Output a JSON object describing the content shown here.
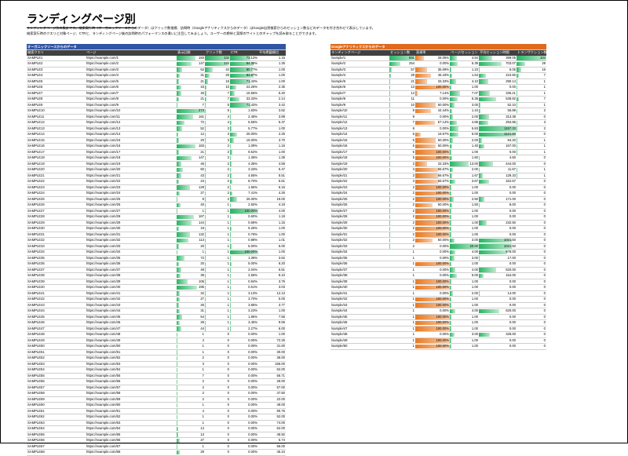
{
  "title": "ランディングページ別",
  "description": [
    "ランディングページ別の集計です。検索実行時（オーガニックソースからのデータ）はクリック数指標、訪問時（Googleアナリティクスからのデータ）はGoogle自然検索からのセッション数などのデータを付き合わせて表示しています。",
    "検索実行時のクエリと対象ページ、CTRと、ランディングページ後の訪問時のパフォーマンスの違いに注目してみましょう。ユーザーの期待と実際のサイトとのギャップを読み取ることができます。"
  ],
  "left_table": {
    "section_title": "オーガニックソースからのデータ",
    "headers": [
      "検索クエリ",
      "ページ",
      "表示回数",
      "クリック数",
      "CTR",
      "平均掲載順位"
    ],
    "rows": [
      [
        "SAMPLE1",
        "https://example.com/1",
        "183",
        "132",
        "72.13%",
        "1.15"
      ],
      [
        "SAMPLE2",
        "https://example.com/2",
        "147",
        "124",
        "84.35%",
        "1.35"
      ],
      [
        "SAMPLE3",
        "https://example.com/3",
        "52",
        "42",
        "80.77%",
        "1.00"
      ],
      [
        "SAMPLE4",
        "https://example.com/4",
        "31",
        "26",
        "83.87%",
        "1.00"
      ],
      [
        "SAMPLE5",
        "https://example.com/5",
        "21",
        "15",
        "71.43%",
        "1.00"
      ],
      [
        "SAMPLE6",
        "https://example.com/6",
        "43",
        "10",
        "23.26%",
        "2.35"
      ],
      [
        "SAMPLE7",
        "https://example.com/7",
        "45",
        "7",
        "15.56%",
        "5.40"
      ],
      [
        "SAMPLE8",
        "https://example.com/8",
        "21",
        "7",
        "33.33%",
        "2.14"
      ],
      [
        "SAMPLE9",
        "https://example.com/9",
        "7",
        "5",
        "71.43%",
        "3.42"
      ],
      [
        "SAMPLE10",
        "https://example.com/10",
        "273",
        "5",
        "1.83%",
        "3.62"
      ],
      [
        "SAMPLE11",
        "https://example.com/11",
        "161",
        "4",
        "2.48%",
        "3.89"
      ],
      [
        "SAMPLE12",
        "https://example.com/12",
        "72",
        "4",
        "5.56%",
        "5.37"
      ],
      [
        "SAMPLE13",
        "https://example.com/13",
        "52",
        "3",
        "5.77%",
        "1.00"
      ],
      [
        "SAMPLE14",
        "https://example.com/14",
        "12",
        "3",
        "25.00%",
        "2.25"
      ],
      [
        "SAMPLE15",
        "https://example.com/15",
        "20",
        "3",
        "15.00%",
        "3.70"
      ],
      [
        "SAMPLE16",
        "https://example.com/16",
        "183",
        "2",
        "1.09%",
        "1.15"
      ],
      [
        "SAMPLE17",
        "https://example.com/17",
        "21",
        "2",
        "9.52%",
        "1.00"
      ],
      [
        "SAMPLE18",
        "https://example.com/18",
        "147",
        "2",
        "1.36%",
        "1.35"
      ],
      [
        "SAMPLE19",
        "https://example.com/19",
        "46",
        "2",
        "4.35%",
        "4.59"
      ],
      [
        "SAMPLE20",
        "https://example.com/20",
        "60",
        "2",
        "3.33%",
        "5.47"
      ],
      [
        "SAMPLE21",
        "https://example.com/21",
        "43",
        "2",
        "4.65%",
        "5.51"
      ],
      [
        "SAMPLE22",
        "https://example.com/22",
        "23",
        "2",
        "8.70%",
        "5.61"
      ],
      [
        "SAMPLE23",
        "https://example.com/23",
        "129",
        "2",
        "1.55%",
        "6.16"
      ],
      [
        "SAMPLE24",
        "https://example.com/24",
        "27",
        "2",
        "7.41%",
        "4.26"
      ],
      [
        "SAMPLE25",
        "https://example.com/25",
        "8",
        "2",
        "25.00%",
        "19.00"
      ],
      [
        "SAMPLE26",
        "https://example.com/26",
        "40",
        "1",
        "2.50%",
        "4.19"
      ],
      [
        "SAMPLE27",
        "https://example.com/27",
        "1",
        "1",
        "100.00%",
        "4.00"
      ],
      [
        "SAMPLE28",
        "https://example.com/28",
        "167",
        "1",
        "0.60%",
        "1.18"
      ],
      [
        "SAMPLE29",
        "https://example.com/29",
        "144",
        "1",
        "0.69%",
        "1.15"
      ],
      [
        "SAMPLE30",
        "https://example.com/30",
        "19",
        "1",
        "5.26%",
        "1.00"
      ],
      [
        "SAMPLE31",
        "https://example.com/31",
        "132",
        "1",
        "0.76%",
        "1.00"
      ],
      [
        "SAMPLE32",
        "https://example.com/32",
        "113",
        "1",
        "0.88%",
        "1.01"
      ],
      [
        "SAMPLE33",
        "https://example.com/33",
        "20",
        "1",
        "5.00%",
        "5.00"
      ],
      [
        "SAMPLE34",
        "https://example.com/34",
        "1",
        "1",
        "100.00%",
        "1.00"
      ],
      [
        "SAMPLE35",
        "https://example.com/35",
        "72",
        "1",
        "1.39%",
        "3.62"
      ],
      [
        "SAMPLE36",
        "https://example.com/36",
        "20",
        "1",
        "5.00%",
        "6.20"
      ],
      [
        "SAMPLE37",
        "https://example.com/37",
        "49",
        "1",
        "2.04%",
        "6.51"
      ],
      [
        "SAMPLE38",
        "https://example.com/38",
        "39",
        "1",
        "2.56%",
        "9.10"
      ],
      [
        "SAMPLE39",
        "https://example.com/39",
        "106",
        "1",
        "0.94%",
        "3.76"
      ],
      [
        "SAMPLE40",
        "https://example.com/40",
        "195",
        "1",
        "0.51%",
        "3.03"
      ],
      [
        "SAMPLE41",
        "https://example.com/41",
        "32",
        "1",
        "3.13%",
        "12.13"
      ],
      [
        "SAMPLE42",
        "https://example.com/42",
        "27",
        "1",
        "3.70%",
        "5.00"
      ],
      [
        "SAMPLE43",
        "https://example.com/43",
        "26",
        "1",
        "3.85%",
        "3.77"
      ],
      [
        "SAMPLE44",
        "https://example.com/44",
        "31",
        "1",
        "3.23%",
        "1.00"
      ],
      [
        "SAMPLE45",
        "https://example.com/45",
        "54",
        "1",
        "1.85%",
        "7.56"
      ],
      [
        "SAMPLE46",
        "https://example.com/46",
        "29",
        "1",
        "3.45%",
        "9.59"
      ],
      [
        "SAMPLE47",
        "https://example.com/47",
        "44",
        "1",
        "2.27%",
        "6.00"
      ],
      [
        "SAMPLE48",
        "https://example.com/48",
        "1",
        "0",
        "0.00%",
        "1.00"
      ],
      [
        "SAMPLE49",
        "https://example.com/49",
        "4",
        "0",
        "0.00%",
        "72.25"
      ],
      [
        "SAMPLE50",
        "https://example.com/50",
        "1",
        "0",
        "0.00%",
        "31.00"
      ],
      [
        "SAMPLE51",
        "https://example.com/51",
        "1",
        "0",
        "0.00%",
        "30.00"
      ],
      [
        "SAMPLE52",
        "https://example.com/52",
        "2",
        "0",
        "0.00%",
        "36.00"
      ],
      [
        "SAMPLE53",
        "https://example.com/53",
        "3",
        "0",
        "0.00%",
        "156.00"
      ],
      [
        "SAMPLE54",
        "https://example.com/54",
        "1",
        "0",
        "0.00%",
        "62.00"
      ],
      [
        "SAMPLE55",
        "https://example.com/55",
        "7",
        "0",
        "0.00%",
        "56.71"
      ],
      [
        "SAMPLE56",
        "https://example.com/56",
        "2",
        "0",
        "0.00%",
        "28.00"
      ],
      [
        "SAMPLE57",
        "https://example.com/57",
        "2",
        "0",
        "0.00%",
        "57.00"
      ],
      [
        "SAMPLE58",
        "https://example.com/58",
        "2",
        "0",
        "0.00%",
        "47.50"
      ],
      [
        "SAMPLE59",
        "https://example.com/59",
        "2",
        "0",
        "0.00%",
        "22.00"
      ],
      [
        "SAMPLE60",
        "https://example.com/60",
        "1",
        "0",
        "0.00%",
        "49.00"
      ],
      [
        "SAMPLE61",
        "https://example.com/61",
        "4",
        "0",
        "0.00%",
        "90.75"
      ],
      [
        "SAMPLE62",
        "https://example.com/62",
        "1",
        "0",
        "0.00%",
        "52.00"
      ],
      [
        "SAMPLE63",
        "https://example.com/63",
        "1",
        "0",
        "0.00%",
        "74.00"
      ],
      [
        "SAMPLE64",
        "https://example.com/64",
        "14",
        "0",
        "0.00%",
        "52.00"
      ],
      [
        "SAMPLE65",
        "https://example.com/65",
        "13",
        "0",
        "0.00%",
        "48.92"
      ],
      [
        "SAMPLE66",
        "https://example.com/66",
        "27",
        "0",
        "0.00%",
        "5.74"
      ],
      [
        "SAMPLE67",
        "https://example.com/67",
        "1",
        "0",
        "0.00%",
        "66.00"
      ],
      [
        "SAMPLE68",
        "https://example.com/68",
        "29",
        "0",
        "0.00%",
        "45.24"
      ]
    ]
  },
  "right_table": {
    "section_title": "Googleアナリティクスからのデータ",
    "headers": [
      "ランディングページ",
      "セッション数",
      "直帰率",
      "ページ/セッション",
      "平均セッション時間",
      "トランザクション数"
    ],
    "rows": [
      [
        "/sample/1",
        "591",
        "26.05%",
        "4.84",
        "399.05",
        "104"
      ],
      [
        "/sample/2",
        "254",
        "0.00%",
        "5.39",
        "703.07",
        "29"
      ],
      [
        "/sample/3",
        "57",
        "35.09%",
        "1.23",
        "6.05",
        "16"
      ],
      [
        "/sample/4",
        "28",
        "46.43%",
        "1.64",
        "210.50",
        "7"
      ],
      [
        "/sample/5",
        "21",
        "33.33%",
        "4.10",
        "290.14",
        "1"
      ],
      [
        "/sample/6",
        "13",
        "100.00%",
        "1.00",
        "0.00",
        "1"
      ],
      [
        "/sample/7",
        "14",
        "7.14%",
        "7.07",
        "335.21",
        "1"
      ],
      [
        "/sample/8",
        "11",
        "0.00%",
        "5.36",
        "538.82",
        "7"
      ],
      [
        "/sample/9",
        "10",
        "60.00%",
        "3.00",
        "52.10",
        "1"
      ],
      [
        "/sample/10",
        "9",
        "44.44%",
        "1.44",
        "56.89",
        "2"
      ],
      [
        "/sample/11",
        "9",
        "0.00%",
        "2.00",
        "313.38",
        "0"
      ],
      [
        "/sample/12",
        "7",
        "57.14%",
        "4.86",
        "294.86",
        "3"
      ],
      [
        "/sample/13",
        "6",
        "0.00%",
        "5.83",
        "1157.33",
        "2"
      ],
      [
        "/sample/14",
        "6",
        "16.67%",
        "6.00",
        "1121.83",
        "0"
      ],
      [
        "/sample/15",
        "5",
        "60.00%",
        "2.00",
        "94.20",
        "1"
      ],
      [
        "/sample/16",
        "5",
        "60.00%",
        "1.40",
        "167.00",
        "1"
      ],
      [
        "/sample/17",
        "5",
        "100.00%",
        "1.00",
        "0.00",
        "1"
      ],
      [
        "/sample/18",
        "5",
        "100.00%",
        "1.60",
        "4.60",
        "0"
      ],
      [
        "/sample/19",
        "3",
        "33.33%",
        "13.00",
        "444.00",
        "0"
      ],
      [
        "/sample/20",
        "3",
        "66.67%",
        "2.00",
        "11.67",
        "1"
      ],
      [
        "/sample/21",
        "3",
        "66.67%",
        "1.67",
        "129.33",
        "1"
      ],
      [
        "/sample/22",
        "3",
        "66.67%",
        "3.67",
        "322.67",
        "0"
      ],
      [
        "/sample/23",
        "2",
        "100.00%",
        "1.00",
        "0.00",
        "0"
      ],
      [
        "/sample/24",
        "2",
        "100.00%",
        "1.00",
        "0.00",
        "0"
      ],
      [
        "/sample/25",
        "2",
        "100.00%",
        "2.50",
        "171.00",
        "0"
      ],
      [
        "/sample/26",
        "2",
        "50.00%",
        "1.50",
        "8.00",
        "0"
      ],
      [
        "/sample/27",
        "2",
        "100.00%",
        "1.00",
        "0.00",
        "0"
      ],
      [
        "/sample/28",
        "2",
        "100.00%",
        "1.00",
        "0.00",
        "0"
      ],
      [
        "/sample/29",
        "2",
        "100.00%",
        "1.00",
        "232.50",
        "0"
      ],
      [
        "/sample/30",
        "2",
        "100.00%",
        "1.00",
        "0.00",
        "0"
      ],
      [
        "/sample/31",
        "2",
        "100.00%",
        "1.00",
        "0.00",
        "0"
      ],
      [
        "/sample/32",
        "2",
        "50.00%",
        "3.00",
        "1021.50",
        "0"
      ],
      [
        "/sample/33",
        "2",
        "0.00%",
        "20.00",
        "1021.50",
        "0"
      ],
      [
        "/sample/34",
        "1",
        "0.00%",
        "4.00",
        "878.00",
        "0"
      ],
      [
        "/sample/35",
        "1",
        "0.00%",
        "3.00",
        "17.00",
        "0"
      ],
      [
        "/sample/36",
        "1",
        "100.00%",
        "1.00",
        "0.00",
        "0"
      ],
      [
        "/sample/37",
        "1",
        "0.00%",
        "4.00",
        "520.00",
        "0"
      ],
      [
        "/sample/38",
        "1",
        "0.00%",
        "5.00",
        "154.00",
        "0"
      ],
      [
        "/sample/39",
        "1",
        "100.00%",
        "1.00",
        "0.00",
        "0"
      ],
      [
        "/sample/40",
        "1",
        "100.00%",
        "1.00",
        "0.00",
        "0"
      ],
      [
        "/sample/41",
        "1",
        "0.00%",
        "2.00",
        "14.00",
        "0"
      ],
      [
        "/sample/42",
        "1",
        "100.00%",
        "1.00",
        "0.00",
        "0"
      ],
      [
        "/sample/43",
        "1",
        "100.00%",
        "1.00",
        "0.00",
        "0"
      ],
      [
        "/sample/44",
        "1",
        "0.00%",
        "4.00",
        "620.00",
        "0"
      ],
      [
        "/sample/45",
        "1",
        "100.00%",
        "1.00",
        "0.00",
        "0"
      ],
      [
        "/sample/46",
        "1",
        "100.00%",
        "1.00",
        "0.00",
        "0"
      ],
      [
        "/sample/47",
        "1",
        "100.00%",
        "1.00",
        "0.00",
        "0"
      ],
      [
        "/sample/48",
        "1",
        "0.00%",
        "3.00",
        "328.00",
        "0"
      ],
      [
        "/sample/49",
        "1",
        "100.00%",
        "1.00",
        "0.00",
        "0"
      ],
      [
        "/sample/50",
        "1",
        "100.00%",
        "1.00",
        "0.00",
        "0"
      ]
    ]
  },
  "colors": {
    "left_section": "#2f55a4",
    "right_section": "#e06a1c",
    "header_bg": "#404040",
    "green_bar": "#25b562",
    "orange_bar": "#ea7a20"
  }
}
